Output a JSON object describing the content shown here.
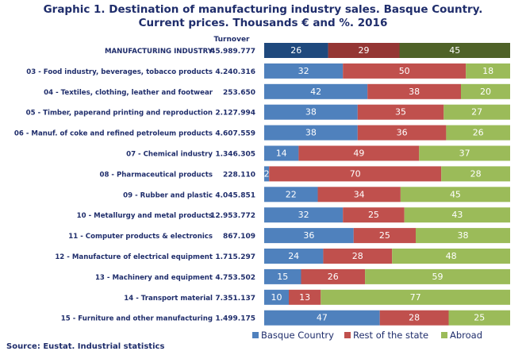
{
  "title": {
    "line1": "Graphic 1. Destination of manufacturing industry sales. Basque Country.",
    "line2": "Current prices. Thousands € and %.  2016"
  },
  "turnover_header": "Turnover",
  "source": "Source: Eustat. Industrial statistics",
  "colors": {
    "basque": "#4f81bd",
    "rest": "#c0504d",
    "abroad": "#9bbb59",
    "total_basque": "#1f497d",
    "total_rest": "#943634",
    "total_abroad": "#4f6228"
  },
  "chart_data": {
    "type": "bar",
    "orientation": "horizontal",
    "stacked": true,
    "percent": true,
    "xlim": [
      0,
      100
    ],
    "legend_position": "bottom",
    "grid": false,
    "categories": [
      "MANUFACTURING INDUSTRY",
      "03 - Food industry, beverages, tobacco products",
      "04 - Textiles, clothing, leather and footwear",
      "05 - Timber, paperand printing and reproduction",
      "06 - Manuf. of coke and refined petroleum products",
      "07 - Chemical industry",
      "08 - Pharmaceutical products",
      "09 - Rubber and plastic",
      "10 - Metallurgy and metal products",
      "11 - Computer products & electronics",
      "12 - Manufacture of electrical equipment",
      "13 - Machinery and equipment",
      "14 - Transport material",
      "15 - Furniture and other manufacturing"
    ],
    "turnover": [
      "45.989.777",
      "4.240.316",
      "253.650",
      "2.127.994",
      "4.607.559",
      "1.346.305",
      "228.110",
      "4.045.851",
      "12.953.772",
      "867.109",
      "1.715.297",
      "4.753.502",
      "7.351.137",
      "1.499.175"
    ],
    "series": [
      {
        "name": "Basque Country",
        "values": [
          26,
          32,
          42,
          38,
          38,
          14,
          2,
          22,
          32,
          36,
          24,
          15,
          10,
          47
        ]
      },
      {
        "name": "Rest of the state",
        "values": [
          29,
          50,
          38,
          35,
          36,
          49,
          70,
          34,
          25,
          25,
          28,
          26,
          13,
          28
        ]
      },
      {
        "name": "Abroad",
        "values": [
          45,
          18,
          20,
          27,
          26,
          37,
          28,
          45,
          43,
          38,
          48,
          59,
          77,
          25
        ]
      }
    ]
  }
}
